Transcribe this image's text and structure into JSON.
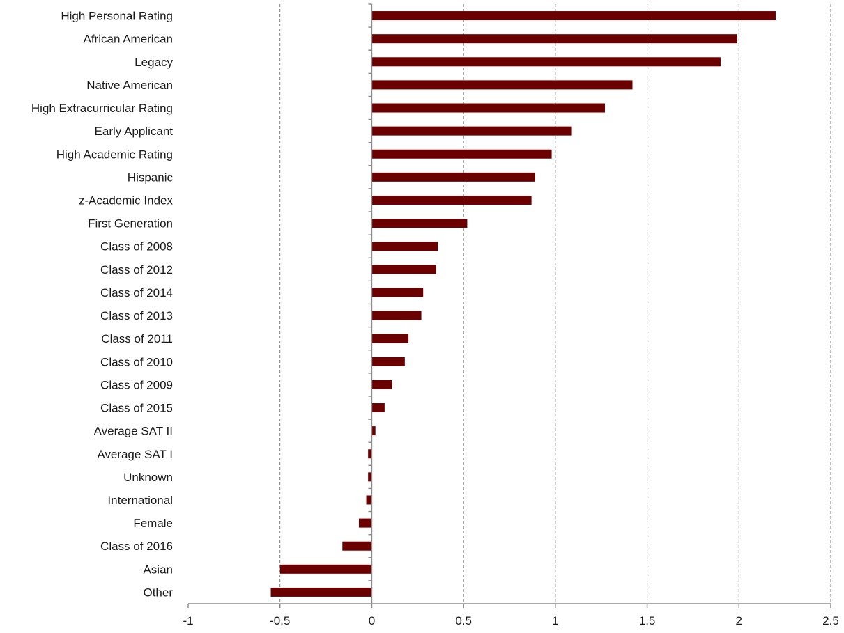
{
  "chart_data": {
    "type": "bar",
    "orientation": "horizontal",
    "categories": [
      "High Personal Rating",
      "African American",
      "Legacy",
      "Native American",
      "High Extracurricular Rating",
      "Early Applicant",
      "High Academic Rating",
      "Hispanic",
      "z-Academic Index",
      "First Generation",
      "Class of 2008",
      "Class of 2012",
      "Class of 2014",
      "Class of 2013",
      "Class of 2011",
      "Class of 2010",
      "Class of 2009",
      "Class of 2015",
      "Average SAT II",
      "Average SAT I",
      "Unknown",
      "International",
      "Female",
      "Class of 2016",
      "Asian",
      "Other"
    ],
    "values": [
      2.2,
      1.99,
      1.9,
      1.42,
      1.27,
      1.09,
      0.98,
      0.89,
      0.87,
      0.52,
      0.36,
      0.35,
      0.28,
      0.27,
      0.2,
      0.18,
      0.11,
      0.07,
      0.02,
      -0.02,
      -0.02,
      -0.03,
      -0.07,
      -0.16,
      -0.5,
      -0.55
    ],
    "xlim": [
      -1,
      2.5
    ],
    "xticks": [
      -1,
      -0.5,
      0,
      0.5,
      1,
      1.5,
      2,
      2.5
    ],
    "xtick_labels": [
      "-1",
      "-0.5",
      "0",
      "0.5",
      "1",
      "1.5",
      "2",
      "2.5"
    ],
    "grid": "vertical dashed",
    "legend": "none",
    "bar_color": "#6b0000",
    "title": "",
    "xlabel": "",
    "ylabel": ""
  }
}
